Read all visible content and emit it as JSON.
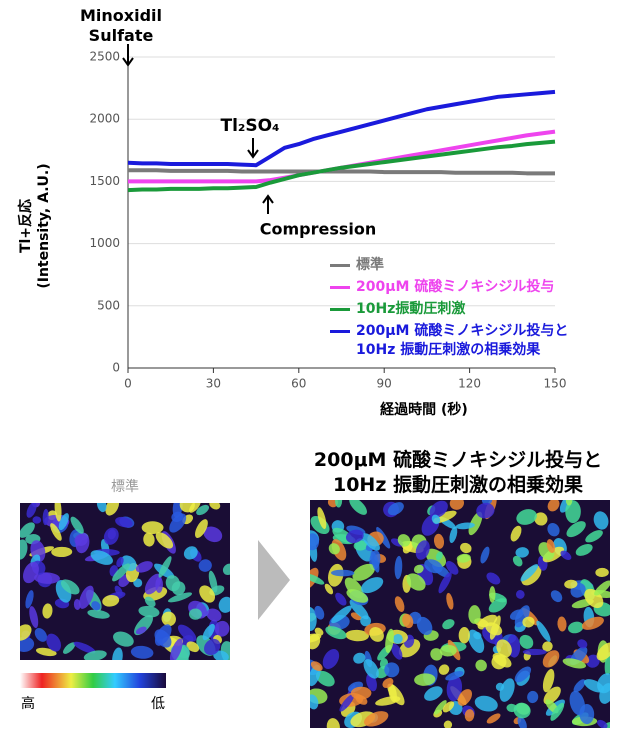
{
  "chart_data": {
    "type": "line",
    "y_label": "Tl+反応\n(Intensity, A.U.)",
    "x_label": "経過時間 (秒)",
    "annotations": [
      "Minoxidil\nSulfate",
      "Tl₂SO₄",
      "Compression"
    ],
    "x": [
      0,
      5,
      10,
      15,
      20,
      25,
      30,
      35,
      40,
      45,
      50,
      55,
      60,
      65,
      70,
      75,
      80,
      85,
      90,
      95,
      100,
      105,
      110,
      115,
      120,
      125,
      130,
      135,
      140,
      145,
      150
    ],
    "xlim": [
      0,
      150
    ],
    "xticks": [
      0,
      30,
      60,
      90,
      120,
      150
    ],
    "ylim": [
      0,
      2500
    ],
    "yticks": [
      0,
      500,
      1000,
      1500,
      2000,
      2500
    ],
    "grid": true,
    "series": [
      {
        "name": "標準",
        "color": "#7a7a7a",
        "values": [
          1590,
          1590,
          1590,
          1585,
          1585,
          1585,
          1585,
          1585,
          1580,
          1580,
          1580,
          1580,
          1580,
          1580,
          1580,
          1580,
          1580,
          1580,
          1575,
          1575,
          1575,
          1575,
          1575,
          1570,
          1570,
          1570,
          1570,
          1570,
          1565,
          1565,
          1565
        ]
      },
      {
        "name": "200μM 硫酸ミノキシジル投与",
        "color": "#ee44ee",
        "values": [
          1500,
          1500,
          1500,
          1500,
          1500,
          1500,
          1500,
          1500,
          1500,
          1500,
          1510,
          1530,
          1550,
          1570,
          1590,
          1610,
          1630,
          1650,
          1670,
          1690,
          1710,
          1730,
          1750,
          1770,
          1790,
          1810,
          1830,
          1850,
          1870,
          1885,
          1900
        ]
      },
      {
        "name": "10Hz振動圧刺激",
        "color": "#1a9a3a",
        "values": [
          1430,
          1435,
          1435,
          1440,
          1440,
          1440,
          1445,
          1445,
          1450,
          1455,
          1490,
          1520,
          1550,
          1570,
          1590,
          1610,
          1625,
          1640,
          1655,
          1670,
          1685,
          1700,
          1715,
          1730,
          1745,
          1760,
          1775,
          1785,
          1800,
          1810,
          1820
        ]
      },
      {
        "name": "200μM 硫酸ミノキシジル投与と\n10Hz 振動圧刺激の相乗効果",
        "color": "#1a1adc",
        "values": [
          1650,
          1645,
          1645,
          1640,
          1640,
          1640,
          1640,
          1640,
          1635,
          1630,
          1700,
          1770,
          1800,
          1840,
          1870,
          1900,
          1930,
          1960,
          1990,
          2020,
          2050,
          2080,
          2100,
          2120,
          2140,
          2160,
          2180,
          2190,
          2200,
          2210,
          2220
        ]
      }
    ]
  },
  "images": {
    "left_title": "標準",
    "right_title": "200μM 硫酸ミノキシジル投与と\n10Hz 振動圧刺激の相乗効果",
    "scale_high": "高",
    "scale_low": "低"
  }
}
